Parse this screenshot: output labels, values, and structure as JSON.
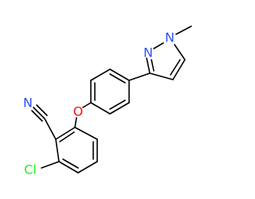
{
  "atoms": {
    "pyrazole_n_methyl": "N",
    "pyrazole_n": "N",
    "ether_o": "O",
    "nitrile_n": "N",
    "chlorine": "Cl"
  }
}
